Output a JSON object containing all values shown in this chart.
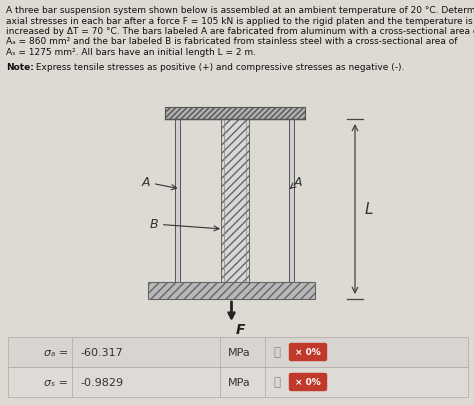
{
  "bg_color": "#ddd9d3",
  "text_color": "#111111",
  "title_lines": [
    "A three bar suspension system shown below is assembled at an ambient temperature of 20 °C. Determine the",
    "axial stresses in each bar after a force F = 105 kN is applied to the rigid platen and the temperature is",
    "increased by ΔT = 70 °C. The bars labeled A are fabricated from aluminum with a cross-sectional area of",
    "Aₐ = 860 mm² and the bar labeled B is fabricated from stainless steel with a cross-sectional area of",
    "Aₛ = 1275 mm². All bars have an initial length L = 2 m."
  ],
  "note_bold": "Note:",
  "note_rest": " Express tensile stresses as positive (+) and compressive stresses as negative (-).",
  "row1_label": "σₐ =",
  "row1_value": "-60.317",
  "row1_unit": "MPa",
  "row2_label": "σₛ =",
  "row2_value": "-0.9829",
  "row2_unit": "MPa",
  "badge_bg": "#c0392b",
  "badge_fg": "#ffffff",
  "badge_text": "× 0%",
  "bar_outer_color": "#c8c8c8",
  "bar_mid_color": "#c0c0c0",
  "bar_mid_hatch_color": "#888888",
  "ceiling_hatch_color": "#777777",
  "ceiling_face": "#b0b0b0",
  "platen_face": "#b8b8b8",
  "platen_edge": "#666666",
  "dim_line_color": "#444444",
  "label_color": "#333333",
  "arrow_color": "#222222"
}
